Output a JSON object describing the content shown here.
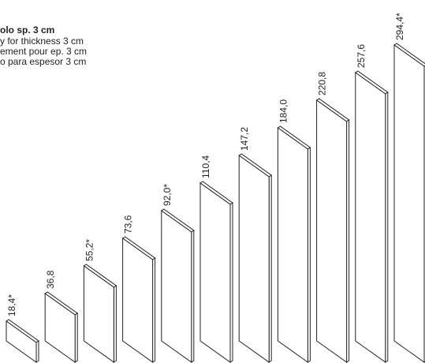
{
  "caption": {
    "title": "olo sp. 3 cm",
    "lines": [
      "y for thickness 3 cm",
      "ement pour ep. 3 cm",
      "o para espesor 3 cm"
    ]
  },
  "panels": [
    "18,4*",
    "36,8",
    "55,2*",
    "73,6",
    "92,0*",
    "110,4",
    "147,2",
    "184,0",
    "220,8",
    "257,6",
    "294,4*"
  ]
}
